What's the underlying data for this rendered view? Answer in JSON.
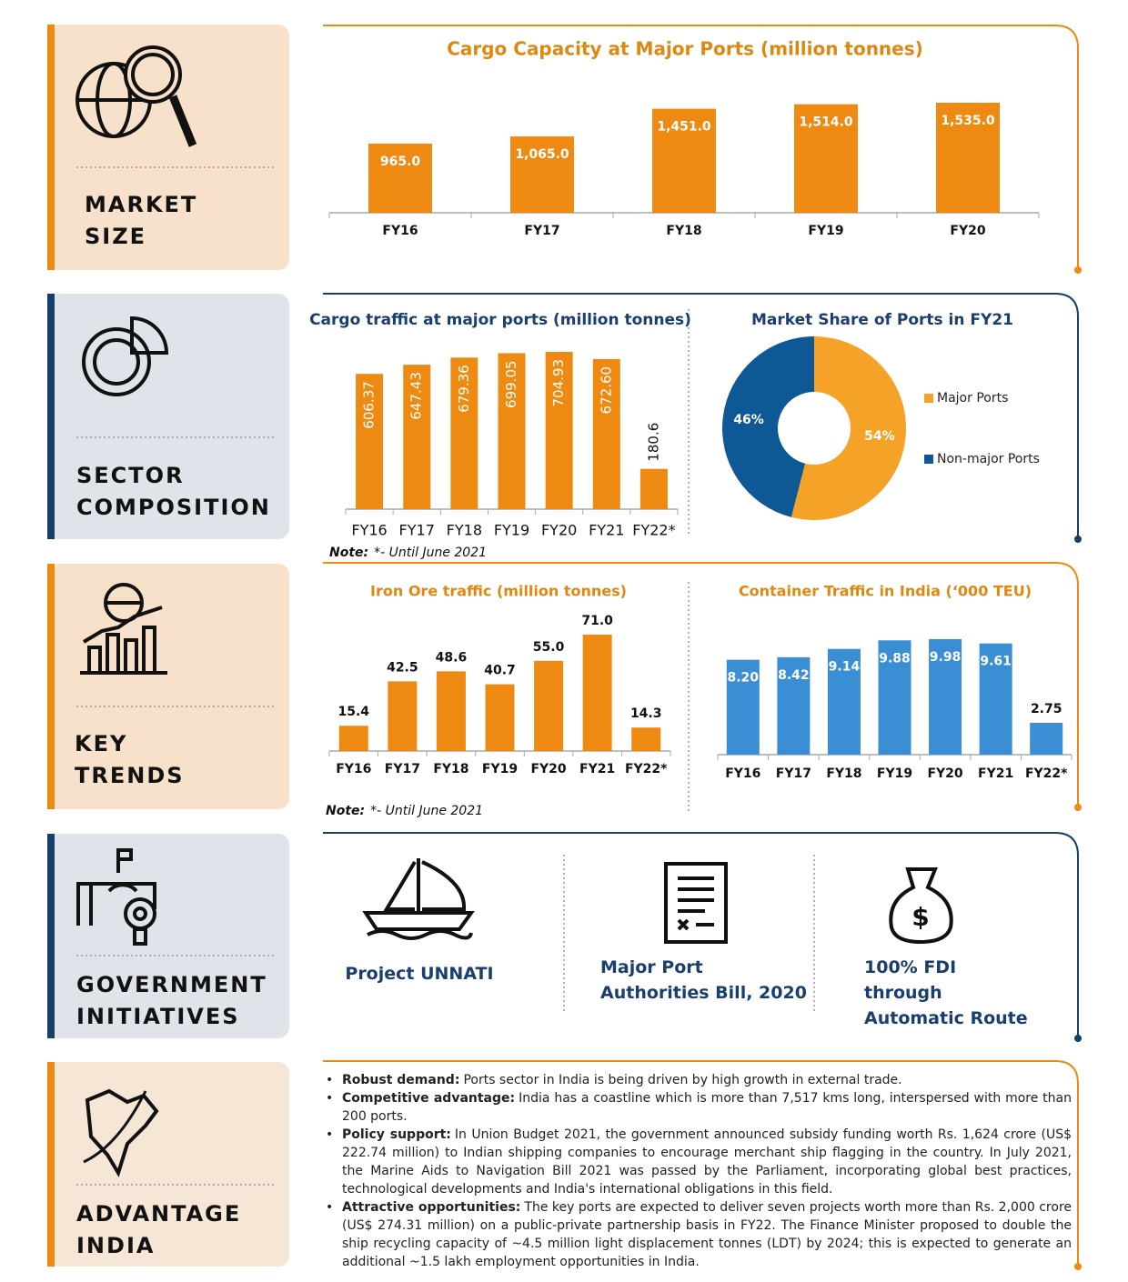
{
  "sections": [
    {
      "label": [
        "MARKET",
        "SIZE"
      ]
    },
    {
      "label": [
        "SECTOR",
        "COMPOSITION"
      ]
    },
    {
      "label": [
        "KEY",
        "TRENDS"
      ]
    },
    {
      "label": [
        "GOVERNMENT",
        "INITIATIVES"
      ]
    },
    {
      "label": [
        "ADVANTAGE",
        "INDIA"
      ]
    }
  ],
  "chart_data": [
    {
      "type": "bar",
      "title": "Cargo Capacity at Major Ports (million tonnes)",
      "categories": [
        "FY16",
        "FY17",
        "FY18",
        "FY19",
        "FY20"
      ],
      "values": [
        965,
        1065,
        1451,
        1514,
        1535
      ],
      "value_labels": [
        "965.0",
        "1,065.0",
        "1,451.0",
        "1,514.0",
        "1,535.0"
      ],
      "color": "#ee8a12"
    },
    {
      "type": "bar",
      "title": "Cargo traffic at major ports (million tonnes)",
      "categories": [
        "FY16",
        "FY17",
        "FY18",
        "FY19",
        "FY20",
        "FY21",
        "FY22*"
      ],
      "values": [
        606.37,
        647.43,
        679.36,
        699.05,
        704.93,
        672.6,
        180.6
      ],
      "value_labels": [
        "606.37",
        "647.43",
        "679.36",
        "699.05",
        "704.93",
        "672.60",
        "180.6"
      ],
      "color": "#ee8a12",
      "note": {
        "label": "Note:",
        "text": "*- Until June 2021"
      }
    },
    {
      "type": "pie",
      "title": "Market Share of Ports in FY21",
      "categories": [
        "Major Ports",
        "Non-major Ports"
      ],
      "values": [
        54,
        46
      ],
      "value_labels": [
        "54%",
        "46%"
      ],
      "colors": [
        "#f5a228",
        "#0e5896"
      ]
    },
    {
      "type": "bar",
      "title": "Iron Ore traffic (million tonnes)",
      "categories": [
        "FY16",
        "FY17",
        "FY18",
        "FY19",
        "FY20",
        "FY21",
        "FY22*"
      ],
      "values": [
        15.4,
        42.5,
        48.6,
        40.7,
        55,
        71,
        14.3
      ],
      "value_labels": [
        "15.4",
        "42.5",
        "48.6",
        "40.7",
        "55.0",
        "71.0",
        "14.3"
      ],
      "color": "#ee8a12",
      "note": {
        "label": "Note:",
        "text": "*- Until June 2021"
      }
    },
    {
      "type": "bar",
      "title": "Container Traffic in India (‘000 TEU)",
      "categories": [
        "FY16",
        "FY17",
        "FY18",
        "FY19",
        "FY20",
        "FY21",
        "FY22*"
      ],
      "values": [
        8.2,
        8.42,
        9.14,
        9.88,
        9.98,
        9.61,
        2.75
      ],
      "value_labels": [
        "8.20",
        "8.42",
        "9.14",
        "9.88",
        "9.98",
        "9.61",
        "2.75"
      ],
      "color": "#3a8fd4"
    }
  ],
  "initiatives": [
    "Project UNNATI",
    "Major Port Authorities Bill, 2020",
    "100% FDI through Automatic Route"
  ],
  "advantages": [
    {
      "heading": "Robust demand:",
      "text": "Ports sector in India is being driven by high growth in external trade."
    },
    {
      "heading": "Competitive advantage:",
      "text": "India has a coastline which is more than 7,517 kms long, interspersed with more than 200 ports."
    },
    {
      "heading": "Policy support:",
      "text": "In Union Budget 2021, the government announced subsidy funding worth Rs. 1,624 crore (US$ 222.74 million) to Indian shipping companies to encourage merchant ship flagging in the country. In July 2021, the Marine Aids to Navigation Bill 2021 was passed by the Parliament, incorporating global best practices, technological developments and India's international obligations in this field."
    },
    {
      "heading": "Attractive opportunities:",
      "text": "The key ports are expected to deliver seven projects worth more than Rs. 2,000 crore (US$ 274.31 million) on a public-private partnership basis in FY22. The Finance Minister proposed to double the ship recycling capacity of ~4.5 million light displacement tonnes (LDT) by 2024; this is expected to generate an additional ~1.5 lakh employment opportunities in India."
    }
  ]
}
